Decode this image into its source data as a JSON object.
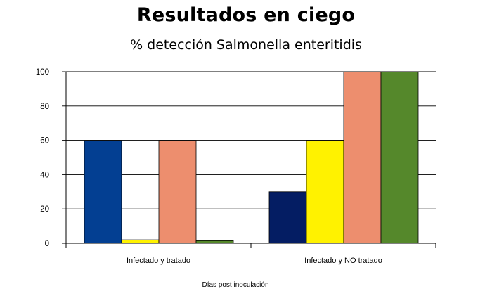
{
  "chart_data": {
    "type": "bar",
    "title": "Resultados en ciego",
    "subtitle": "% detección Salmonella enteritidis",
    "xlabel": "Días post inoculación",
    "ylabel": "",
    "ylim": [
      0,
      100
    ],
    "yticks": [
      0,
      20,
      40,
      60,
      80,
      100
    ],
    "categories": [
      "Infectado y tratado",
      "Infectado y NO tratado"
    ],
    "series": [
      {
        "values": [
          60,
          30
        ],
        "colors": [
          "#033f92",
          "#041d63"
        ]
      },
      {
        "values": [
          2,
          60
        ],
        "colors": [
          "#fff200",
          "#fff200"
        ]
      },
      {
        "values": [
          60,
          100
        ],
        "colors": [
          "#ed8e6e",
          "#ed8e6e"
        ]
      },
      {
        "values": [
          1.5,
          100
        ],
        "colors": [
          "#55882b",
          "#55882b"
        ]
      }
    ],
    "grid": true,
    "legend": "none"
  }
}
